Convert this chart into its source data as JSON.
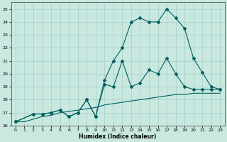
{
  "xlabel": "Humidex (Indice chaleur)",
  "xlim": [
    -0.5,
    23.5
  ],
  "ylim": [
    16,
    25.5
  ],
  "xticks": [
    0,
    1,
    2,
    3,
    4,
    5,
    6,
    7,
    8,
    9,
    10,
    11,
    12,
    13,
    14,
    15,
    16,
    17,
    18,
    19,
    20,
    21,
    22,
    23
  ],
  "yticks": [
    16,
    17,
    18,
    19,
    20,
    21,
    22,
    23,
    24,
    25
  ],
  "bg_color": "#c8e8e0",
  "line_color": "#006060",
  "line1_x": [
    0,
    1,
    2,
    3,
    4,
    5,
    6,
    7,
    8,
    9,
    10,
    11,
    12,
    13,
    14,
    15,
    16,
    17,
    18,
    19,
    20,
    21,
    22,
    23
  ],
  "line1_y": [
    16.3,
    16.3,
    16.5,
    16.7,
    16.8,
    17.0,
    17.1,
    17.2,
    17.3,
    17.4,
    17.6,
    17.7,
    17.8,
    17.9,
    18.0,
    18.1,
    18.2,
    18.3,
    18.4,
    18.4,
    18.5,
    18.5,
    18.5,
    18.5
  ],
  "line2_x": [
    0,
    2,
    3,
    4,
    5,
    6,
    7,
    8,
    9,
    10,
    11,
    12,
    13,
    14,
    15,
    16,
    17,
    18,
    19,
    20,
    21,
    22,
    23
  ],
  "line2_y": [
    16.3,
    16.9,
    16.9,
    17.0,
    17.2,
    16.7,
    17.0,
    18.0,
    16.7,
    19.2,
    19.0,
    21.0,
    19.0,
    19.3,
    20.3,
    20.0,
    21.2,
    20.0,
    19.0,
    18.8,
    18.8,
    18.8,
    18.8
  ],
  "line3_x": [
    0,
    2,
    3,
    4,
    5,
    6,
    7,
    8,
    9,
    10,
    11,
    12,
    13,
    14,
    15,
    16,
    17,
    18,
    19,
    20,
    21,
    22,
    23
  ],
  "line3_y": [
    16.3,
    16.9,
    16.9,
    17.0,
    17.2,
    16.7,
    17.0,
    18.0,
    16.7,
    19.5,
    21.0,
    22.0,
    24.0,
    24.3,
    24.0,
    24.0,
    25.0,
    24.3,
    23.5,
    21.2,
    20.1,
    19.0,
    18.8
  ]
}
